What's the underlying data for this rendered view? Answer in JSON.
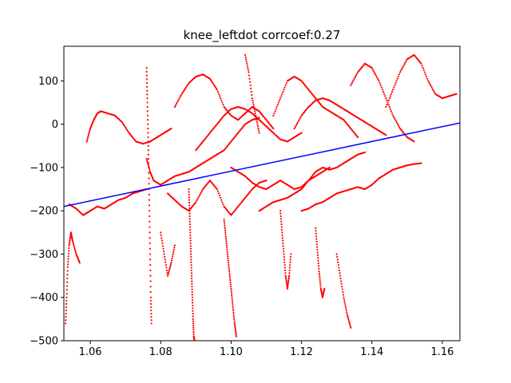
{
  "chart_data": {
    "type": "scatter",
    "title": "knee_leftdot corrcoef:0.27",
    "xlim": [
      1.0525,
      1.165
    ],
    "ylim": [
      -500,
      180
    ],
    "x_ticks": [
      1.06,
      1.08,
      1.1,
      1.12,
      1.14,
      1.16
    ],
    "x_tick_labels": [
      "1.06",
      "1.08",
      "1.10",
      "1.12",
      "1.14",
      "1.16"
    ],
    "y_ticks": [
      100,
      0,
      -100,
      -200,
      -300,
      -400,
      -500
    ],
    "y_tick_labels": [
      "100",
      "0",
      "−100",
      "−200",
      "−300",
      "−400",
      "−500"
    ],
    "grid": false,
    "colors": {
      "points": "#ff0000",
      "fit_line": "#0000ff",
      "axes": "#000000"
    },
    "fit_line": {
      "x": [
        1.0525,
        1.165
      ],
      "y": [
        -190,
        3
      ]
    },
    "series": [
      {
        "x": [
          1.054,
          1.056,
          1.058,
          1.059,
          1.06,
          1.062,
          1.064,
          1.066,
          1.068,
          1.07,
          1.072,
          1.074,
          1.076
        ],
        "y": [
          -185,
          -195,
          -210,
          -205,
          -200,
          -190,
          -195,
          -185,
          -175,
          -170,
          -160,
          -155,
          -150
        ]
      },
      {
        "x": [
          1.059,
          1.06,
          1.061,
          1.062,
          1.063,
          1.065,
          1.067,
          1.069,
          1.071,
          1.073,
          1.075,
          1.077,
          1.079,
          1.081,
          1.083
        ],
        "y": [
          -40,
          -10,
          10,
          25,
          30,
          25,
          20,
          5,
          -20,
          -40,
          -45,
          -40,
          -30,
          -20,
          -10
        ]
      },
      {
        "x": [
          1.076,
          1.077,
          1.078,
          1.08,
          1.082,
          1.084,
          1.086,
          1.088,
          1.09,
          1.092,
          1.094,
          1.096,
          1.098,
          1.1,
          1.102,
          1.104,
          1.106,
          1.108
        ],
        "y": [
          -80,
          -110,
          -130,
          -140,
          -130,
          -120,
          -115,
          -110,
          -100,
          -90,
          -80,
          -70,
          -60,
          -40,
          -20,
          0,
          10,
          15
        ]
      },
      {
        "x": [
          1.082,
          1.084,
          1.086,
          1.088,
          1.09,
          1.092,
          1.094,
          1.096,
          1.098,
          1.1,
          1.102,
          1.104,
          1.106,
          1.108,
          1.11
        ],
        "y": [
          -160,
          -175,
          -190,
          -200,
          -180,
          -150,
          -130,
          -150,
          -190,
          -210,
          -190,
          -170,
          -150,
          -135,
          -130
        ]
      },
      {
        "x": [
          1.084,
          1.086,
          1.088,
          1.09,
          1.092,
          1.094,
          1.096,
          1.098,
          1.1,
          1.102,
          1.104,
          1.106,
          1.108,
          1.11,
          1.112
        ],
        "y": [
          40,
          70,
          95,
          110,
          115,
          105,
          80,
          40,
          20,
          10,
          25,
          40,
          30,
          10,
          -10
        ]
      },
      {
        "x": [
          1.09,
          1.092,
          1.094,
          1.096,
          1.098,
          1.1,
          1.102,
          1.104,
          1.106,
          1.108,
          1.11,
          1.112,
          1.114,
          1.116,
          1.118,
          1.12
        ],
        "y": [
          -60,
          -40,
          -20,
          0,
          20,
          35,
          40,
          35,
          25,
          10,
          -5,
          -20,
          -35,
          -40,
          -30,
          -20
        ]
      },
      {
        "x": [
          1.1,
          1.102,
          1.104,
          1.106,
          1.108,
          1.11,
          1.112,
          1.114,
          1.116,
          1.118,
          1.12,
          1.122,
          1.124,
          1.126,
          1.128
        ],
        "y": [
          -100,
          -110,
          -120,
          -135,
          -145,
          -150,
          -140,
          -130,
          -140,
          -150,
          -145,
          -130,
          -120,
          -110,
          -100
        ]
      },
      {
        "x": [
          1.108,
          1.11,
          1.112,
          1.114,
          1.116,
          1.118,
          1.12,
          1.122,
          1.124,
          1.126,
          1.128,
          1.13,
          1.132,
          1.134,
          1.136,
          1.138
        ],
        "y": [
          -200,
          -190,
          -180,
          -175,
          -170,
          -160,
          -150,
          -130,
          -110,
          -100,
          -105,
          -100,
          -90,
          -80,
          -70,
          -65
        ]
      },
      {
        "x": [
          1.112,
          1.114,
          1.116,
          1.118,
          1.12,
          1.122,
          1.124,
          1.126,
          1.128,
          1.13,
          1.132,
          1.134,
          1.136
        ],
        "y": [
          20,
          60,
          100,
          110,
          100,
          80,
          60,
          40,
          30,
          20,
          10,
          -10,
          -30
        ]
      },
      {
        "x": [
          1.118,
          1.12,
          1.122,
          1.124,
          1.126,
          1.128,
          1.13,
          1.132,
          1.134,
          1.136,
          1.138,
          1.14,
          1.142,
          1.144
        ],
        "y": [
          -10,
          20,
          40,
          55,
          60,
          55,
          45,
          35,
          25,
          15,
          5,
          -5,
          -15,
          -25
        ]
      },
      {
        "x": [
          1.12,
          1.122,
          1.124,
          1.126,
          1.128,
          1.13,
          1.132,
          1.134,
          1.136,
          1.138,
          1.14,
          1.142,
          1.144,
          1.146,
          1.148,
          1.15,
          1.152,
          1.154
        ],
        "y": [
          -200,
          -195,
          -185,
          -180,
          -170,
          -160,
          -155,
          -150,
          -145,
          -150,
          -140,
          -125,
          -115,
          -105,
          -100,
          -95,
          -92,
          -90
        ]
      },
      {
        "x": [
          1.134,
          1.136,
          1.138,
          1.14,
          1.142,
          1.144,
          1.146,
          1.148,
          1.15,
          1.152
        ],
        "y": [
          90,
          120,
          140,
          130,
          100,
          60,
          20,
          -10,
          -30,
          -40
        ]
      },
      {
        "x": [
          1.144,
          1.146,
          1.148,
          1.15,
          1.152,
          1.154,
          1.156,
          1.158,
          1.16,
          1.162,
          1.164
        ],
        "y": [
          40,
          80,
          120,
          150,
          160,
          140,
          100,
          70,
          60,
          65,
          70
        ]
      },
      {
        "x": [
          1.076,
          1.0762,
          1.0764,
          1.0766,
          1.0768,
          1.077,
          1.0772,
          1.0774
        ],
        "y": [
          130,
          60,
          -20,
          -100,
          -200,
          -300,
          -400,
          -460
        ]
      },
      {
        "x": [
          1.088,
          1.0882,
          1.0884,
          1.0886,
          1.0888,
          1.089,
          1.0892,
          1.0894,
          1.0896
        ],
        "y": [
          -150,
          -200,
          -250,
          -300,
          -350,
          -400,
          -450,
          -490,
          -500
        ]
      },
      {
        "x": [
          1.098,
          1.0985,
          1.099,
          1.0995,
          1.1,
          1.1005,
          1.101,
          1.1015
        ],
        "y": [
          -220,
          -260,
          -300,
          -340,
          -380,
          -420,
          -460,
          -490
        ]
      },
      {
        "x": [
          1.114,
          1.1145,
          1.115,
          1.1155,
          1.116,
          1.1165,
          1.117
        ],
        "y": [
          -200,
          -250,
          -300,
          -350,
          -380,
          -350,
          -300
        ]
      },
      {
        "x": [
          1.124,
          1.1245,
          1.125,
          1.1255,
          1.126,
          1.1265
        ],
        "y": [
          -240,
          -290,
          -340,
          -380,
          -400,
          -380
        ]
      },
      {
        "x": [
          1.053,
          1.0533,
          1.0536,
          1.054,
          1.0545,
          1.055,
          1.056,
          1.057
        ],
        "y": [
          -460,
          -400,
          -330,
          -280,
          -250,
          -270,
          -300,
          -320
        ]
      },
      {
        "x": [
          1.08,
          1.081,
          1.082,
          1.083,
          1.084
        ],
        "y": [
          -250,
          -300,
          -350,
          -320,
          -280
        ]
      },
      {
        "x": [
          1.104,
          1.105,
          1.106,
          1.107,
          1.108
        ],
        "y": [
          160,
          120,
          60,
          20,
          -20
        ]
      },
      {
        "x": [
          1.13,
          1.131,
          1.132,
          1.133,
          1.134
        ],
        "y": [
          -300,
          -350,
          -400,
          -440,
          -470
        ]
      }
    ]
  }
}
